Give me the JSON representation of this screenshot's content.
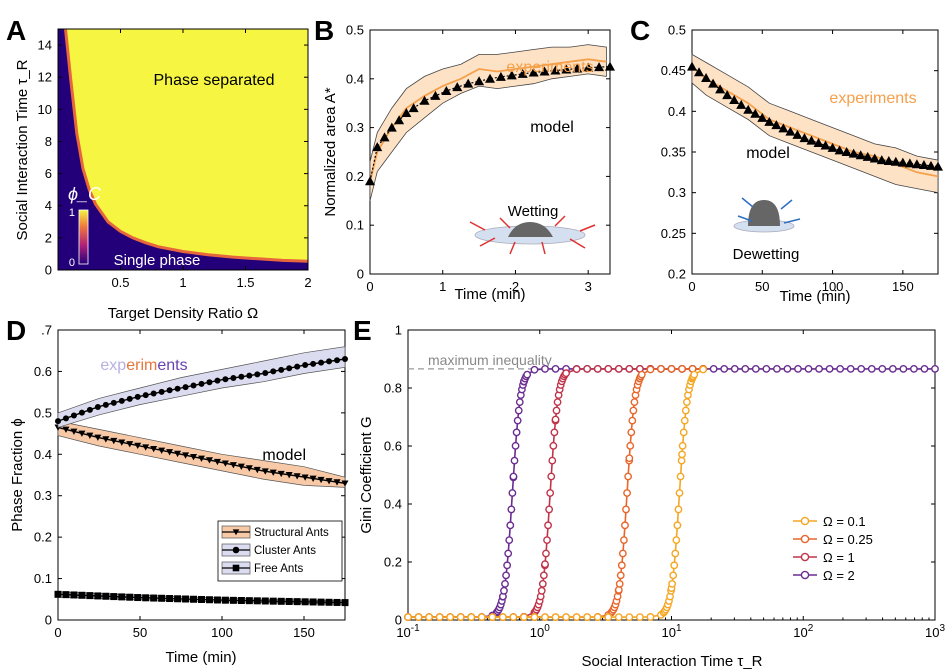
{
  "chart_data": [
    {
      "panel": "A",
      "type": "heatmap",
      "xlabel": "Target Density Ratio Ω",
      "ylabel": "Social Interaction Time τ_R",
      "xlim": [
        0,
        2
      ],
      "ylim": [
        0,
        15
      ],
      "xticks": [
        0.5,
        1,
        1.5,
        2
      ],
      "yticks": [
        0,
        2,
        4,
        6,
        8,
        10,
        12,
        14
      ],
      "colorbar": {
        "label": "ϕ_C",
        "min": 0,
        "max": 1,
        "ticks": [
          0,
          1
        ]
      },
      "annotations": [
        "Phase separated",
        "Single phase"
      ],
      "boundary": {
        "x": [
          0.06,
          0.1,
          0.15,
          0.2,
          0.25,
          0.3,
          0.4,
          0.5,
          0.6,
          0.7,
          0.8,
          1.0,
          1.2,
          1.4,
          1.6,
          1.8,
          2.0
        ],
        "y": [
          15,
          12.0,
          8.5,
          6.3,
          5.0,
          4.1,
          3.0,
          2.4,
          2.0,
          1.7,
          1.45,
          1.15,
          0.95,
          0.8,
          0.7,
          0.6,
          0.55
        ]
      },
      "colors": {
        "high": "#f5f542",
        "low": "#23007a",
        "edge": "#e8663c"
      }
    },
    {
      "panel": "B",
      "type": "line",
      "xlabel": "Time (min)",
      "ylabel": "Normalized area A*",
      "xlim": [
        0,
        3.3
      ],
      "ylim": [
        0,
        0.5
      ],
      "xticks": [
        0,
        1,
        2,
        3
      ],
      "yticks": [
        0,
        0.1,
        0.2,
        0.3,
        0.4,
        0.5
      ],
      "annotations": [
        "experiments",
        "model",
        "Wetting"
      ],
      "series": [
        {
          "name": "experiments",
          "color": "#f5a04b",
          "x": [
            0,
            0.1,
            0.3,
            0.5,
            0.75,
            1.0,
            1.25,
            1.5,
            1.75,
            2.0,
            2.25,
            2.5,
            2.75,
            3.0,
            3.25
          ],
          "y": [
            0.19,
            0.25,
            0.3,
            0.34,
            0.365,
            0.385,
            0.4,
            0.42,
            0.415,
            0.42,
            0.425,
            0.43,
            0.435,
            0.44,
            0.435
          ],
          "lower": [
            0.15,
            0.21,
            0.25,
            0.29,
            0.32,
            0.35,
            0.37,
            0.385,
            0.38,
            0.385,
            0.39,
            0.4,
            0.405,
            0.41,
            0.405
          ],
          "upper": [
            0.23,
            0.29,
            0.34,
            0.38,
            0.405,
            0.42,
            0.43,
            0.45,
            0.45,
            0.455,
            0.46,
            0.465,
            0.465,
            0.47,
            0.465
          ]
        },
        {
          "name": "model",
          "color": "#000000",
          "x": [
            0,
            0.1,
            0.2,
            0.3,
            0.4,
            0.5,
            0.6,
            0.75,
            0.9,
            1.05,
            1.2,
            1.35,
            1.5,
            1.65,
            1.8,
            1.95,
            2.1,
            2.25,
            2.4,
            2.55,
            2.7,
            2.85,
            3.0,
            3.15,
            3.3
          ],
          "y": [
            0.19,
            0.26,
            0.28,
            0.3,
            0.315,
            0.33,
            0.34,
            0.355,
            0.365,
            0.375,
            0.383,
            0.39,
            0.395,
            0.4,
            0.404,
            0.407,
            0.41,
            0.413,
            0.415,
            0.417,
            0.419,
            0.421,
            0.423,
            0.424,
            0.425
          ]
        }
      ]
    },
    {
      "panel": "C",
      "type": "line",
      "xlabel": "Time (min)",
      "xlim": [
        0,
        175
      ],
      "ylim": [
        0.2,
        0.5
      ],
      "xticks": [
        0,
        50,
        100,
        150
      ],
      "yticks": [
        0.2,
        0.25,
        0.3,
        0.35,
        0.4,
        0.45,
        0.5
      ],
      "annotations": [
        "experiments",
        "model",
        "Dewetting"
      ],
      "series": [
        {
          "name": "experiments",
          "color": "#f5a04b",
          "x": [
            0,
            10,
            25,
            40,
            55,
            70,
            85,
            100,
            115,
            130,
            145,
            160,
            175
          ],
          "y": [
            0.455,
            0.44,
            0.425,
            0.41,
            0.39,
            0.38,
            0.37,
            0.36,
            0.35,
            0.345,
            0.335,
            0.325,
            0.32
          ],
          "lower": [
            0.435,
            0.42,
            0.405,
            0.39,
            0.37,
            0.36,
            0.35,
            0.34,
            0.33,
            0.32,
            0.31,
            0.305,
            0.3
          ],
          "upper": [
            0.47,
            0.46,
            0.445,
            0.43,
            0.41,
            0.4,
            0.39,
            0.38,
            0.37,
            0.36,
            0.355,
            0.345,
            0.34
          ]
        },
        {
          "name": "model",
          "color": "#000000",
          "x": [
            0,
            5,
            10,
            15,
            20,
            25,
            30,
            35,
            40,
            45,
            50,
            55,
            60,
            65,
            70,
            75,
            80,
            85,
            90,
            95,
            100,
            105,
            110,
            115,
            120,
            125,
            130,
            135,
            140,
            145,
            150,
            155,
            160,
            165,
            170,
            175
          ],
          "y": [
            0.455,
            0.448,
            0.441,
            0.434,
            0.427,
            0.42,
            0.414,
            0.408,
            0.402,
            0.397,
            0.392,
            0.387,
            0.383,
            0.379,
            0.375,
            0.371,
            0.367,
            0.364,
            0.361,
            0.358,
            0.355,
            0.352,
            0.35,
            0.348,
            0.346,
            0.344,
            0.342,
            0.34,
            0.339,
            0.338,
            0.337,
            0.336,
            0.335,
            0.334,
            0.333,
            0.332
          ]
        }
      ]
    },
    {
      "panel": "D",
      "type": "line",
      "xlabel": "Time (min)",
      "ylabel": "Phase Fraction ϕ",
      "xlim": [
        0,
        175
      ],
      "ylim": [
        0,
        0.7
      ],
      "xticks": [
        0,
        50,
        100,
        150
      ],
      "yticks": [
        0,
        0.1,
        0.2,
        0.3,
        0.4,
        0.5,
        0.6,
        0.7
      ],
      "ytick_labels": [
        "0",
        "0.1",
        "0.2",
        "0.3",
        "0.4",
        "0.5",
        "0.6",
        ".7"
      ],
      "annotations": [
        "experiments",
        "model"
      ],
      "legend": {
        "placement": "lower-right",
        "entries": [
          "Structural Ants",
          "Cluster Ants",
          "Free Ants"
        ]
      },
      "series": [
        {
          "name": "Structural Ants",
          "marker": "triangle-down",
          "color": "#000000",
          "band": "#f8c9a6",
          "x": [
            0,
            25,
            50,
            75,
            100,
            125,
            150,
            175
          ],
          "y": [
            0.465,
            0.44,
            0.42,
            0.4,
            0.38,
            0.36,
            0.345,
            0.33
          ],
          "lower": [
            0.445,
            0.42,
            0.4,
            0.38,
            0.36,
            0.34,
            0.325,
            0.32
          ],
          "upper": [
            0.48,
            0.46,
            0.44,
            0.42,
            0.4,
            0.385,
            0.37,
            0.345
          ]
        },
        {
          "name": "Cluster Ants",
          "marker": "circle",
          "color": "#000000",
          "band": "#dcdcf0",
          "x": [
            0,
            25,
            50,
            75,
            100,
            125,
            150,
            175
          ],
          "y": [
            0.48,
            0.515,
            0.54,
            0.56,
            0.58,
            0.595,
            0.615,
            0.63
          ],
          "lower": [
            0.465,
            0.495,
            0.52,
            0.54,
            0.56,
            0.575,
            0.595,
            0.61
          ],
          "upper": [
            0.5,
            0.535,
            0.56,
            0.585,
            0.605,
            0.625,
            0.645,
            0.66
          ]
        },
        {
          "name": "Free Ants",
          "marker": "square",
          "color": "#000000",
          "band": "#dcdcf0",
          "x": [
            0,
            25,
            50,
            75,
            100,
            125,
            150,
            175
          ],
          "y": [
            0.062,
            0.058,
            0.054,
            0.051,
            0.048,
            0.046,
            0.044,
            0.042
          ],
          "lower": [
            0.055,
            0.052,
            0.049,
            0.046,
            0.044,
            0.042,
            0.04,
            0.038
          ],
          "upper": [
            0.068,
            0.064,
            0.06,
            0.056,
            0.053,
            0.05,
            0.048,
            0.046
          ]
        }
      ]
    },
    {
      "panel": "E",
      "type": "line",
      "xlabel": "Social Interaction Time τ_R",
      "ylabel": "Gini Coefficient G",
      "xscale": "log",
      "xlim": [
        0.1,
        1000
      ],
      "ylim": [
        0,
        1
      ],
      "xticks": [
        0.1,
        1,
        10,
        100,
        1000
      ],
      "xtick_labels": [
        "10",
        "10",
        "10",
        "10",
        "10"
      ],
      "xtick_exponents": [
        "-1",
        "0",
        "1",
        "2",
        "3"
      ],
      "yticks": [
        0,
        0.2,
        0.4,
        0.6,
        0.8,
        1
      ],
      "ytick_labels": [
        "0",
        "0.2",
        "0.4",
        "0.6",
        "0.8",
        "1"
      ],
      "reference_line": {
        "label": "maximum inequality",
        "y": 0.866
      },
      "legend": {
        "placement": "lower-right"
      },
      "series": [
        {
          "name": "Ω = 0.1",
          "color": "#f5a623",
          "transition": 11.5,
          "xmax": 20
        },
        {
          "name": "Ω = 0.25",
          "color": "#e8662a",
          "transition": 4.6,
          "xmax": 20
        },
        {
          "name": "Ω = 1",
          "color": "#c0344a",
          "transition": 1.2,
          "xmax": 20
        },
        {
          "name": "Ω = 2",
          "color": "#6a2c91",
          "transition": 0.62,
          "xmax": 1000
        }
      ]
    }
  ],
  "panel_letters": {
    "a": "A",
    "b": "B",
    "c": "C",
    "d": "D",
    "e": "E"
  }
}
